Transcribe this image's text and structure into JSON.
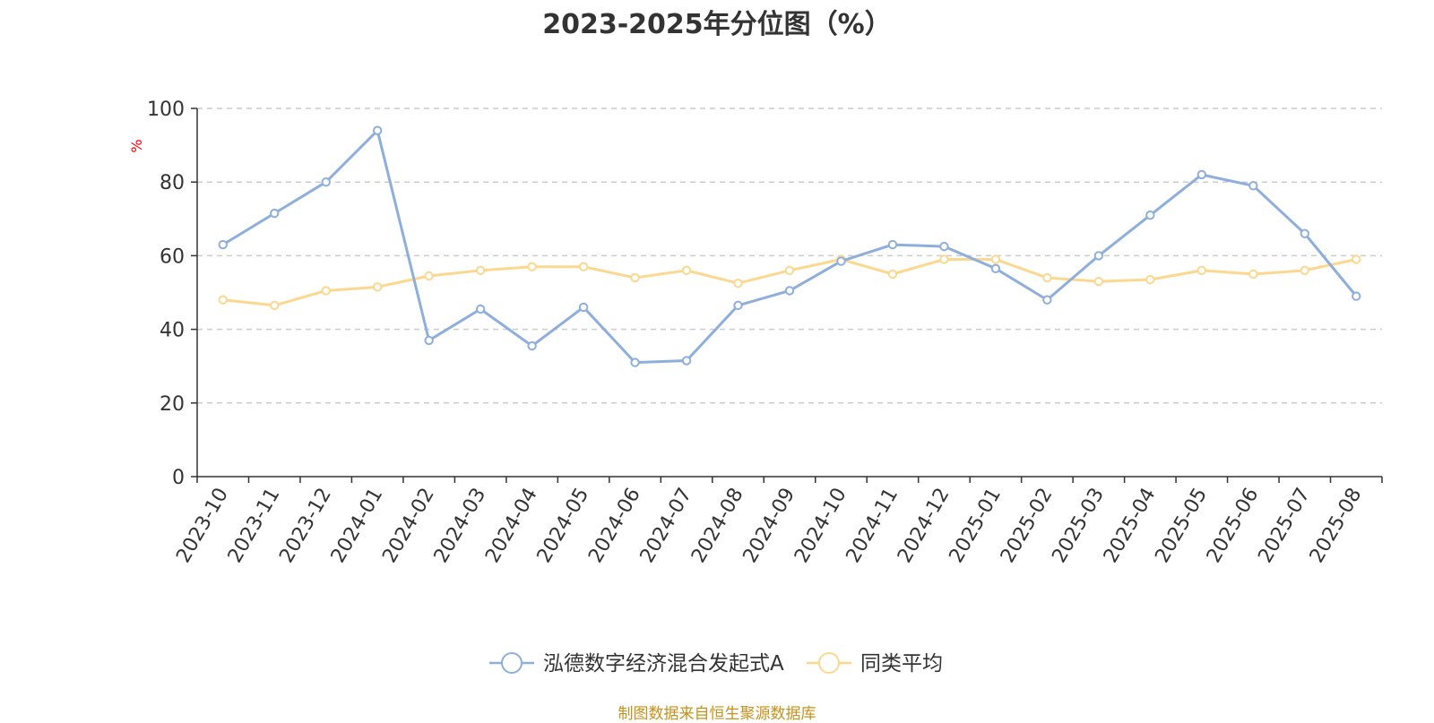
{
  "chart_data": {
    "type": "line",
    "title": "2023-2025年分位图（%）",
    "ylabel": "%",
    "xlabel": "",
    "ylim": [
      0,
      100
    ],
    "yticks": [
      0,
      20,
      40,
      60,
      80,
      100
    ],
    "grid": true,
    "legend_position": "bottom",
    "categories": [
      "2023-10",
      "2023-11",
      "2023-12",
      "2024-01",
      "2024-02",
      "2024-03",
      "2024-04",
      "2024-05",
      "2024-06",
      "2024-07",
      "2024-08",
      "2024-09",
      "2024-10",
      "2024-11",
      "2024-12",
      "2025-01",
      "2025-02",
      "2025-03",
      "2025-04",
      "2025-05",
      "2025-06",
      "2025-07",
      "2025-08"
    ],
    "series": [
      {
        "name": "泓德数字经济混合发起式A",
        "color": "#8eaedb",
        "values": [
          63,
          71.5,
          80,
          94,
          37,
          45.5,
          35.5,
          46,
          31,
          31.5,
          46.5,
          50.5,
          58.5,
          63,
          62.5,
          56.5,
          48,
          60,
          71,
          82,
          79,
          66,
          49
        ]
      },
      {
        "name": "同类平均",
        "color": "#fcd88f",
        "values": [
          48,
          46.5,
          50.5,
          51.5,
          54.5,
          56,
          57,
          57,
          54,
          56,
          52.5,
          56,
          59,
          55,
          59,
          59,
          54,
          53,
          53.5,
          56,
          55,
          56,
          59
        ]
      }
    ]
  },
  "source_text": "制图数据来自恒生聚源数据库"
}
